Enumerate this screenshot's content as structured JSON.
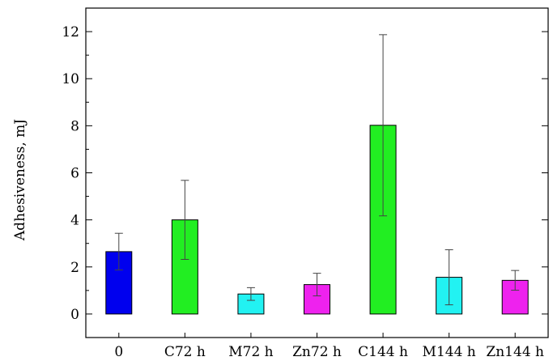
{
  "chart_data": {
    "type": "bar",
    "ylabel": "Adhesiveness, mJ",
    "xlabel": "",
    "ylim": [
      -1,
      13
    ],
    "yticks": [
      0,
      2,
      4,
      6,
      8,
      10,
      12
    ],
    "grid": false,
    "categories": [
      "0",
      "C72 h",
      "M72 h",
      "Zn72 h",
      "C144 h",
      "M144 h",
      "Zn144 h"
    ],
    "values": [
      2.65,
      4.0,
      0.85,
      1.25,
      8.02,
      1.56,
      1.43
    ],
    "errors": [
      0.78,
      1.68,
      0.27,
      0.48,
      3.85,
      1.17,
      0.42
    ],
    "colors": [
      "#0000ee",
      "#22ee22",
      "#22f2f2",
      "#ee22ee",
      "#22ee22",
      "#22f2f2",
      "#ee22ee"
    ]
  }
}
